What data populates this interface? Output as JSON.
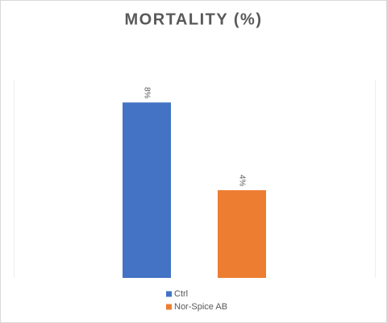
{
  "chart_data": {
    "type": "bar",
    "title": "MORTALITY (%)",
    "categories": [
      null
    ],
    "series": [
      {
        "name": "Ctrl",
        "color": "#4472c4",
        "values": [
          8
        ],
        "value_labels": [
          "8%"
        ]
      },
      {
        "name": "Nor-Spice AB",
        "color": "#ed7d31",
        "values": [
          4
        ],
        "value_labels": [
          "4%"
        ]
      }
    ],
    "ylim": [
      0,
      9
    ],
    "legend": "bottom"
  }
}
